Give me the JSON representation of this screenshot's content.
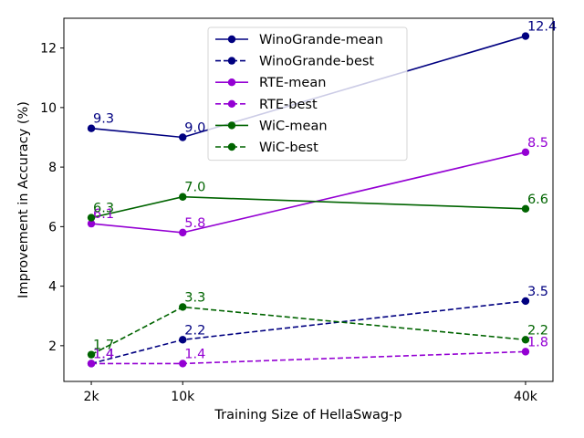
{
  "chart_data": {
    "type": "line",
    "title": "",
    "xlabel": "Training Size of HellaSwag-p",
    "ylabel": "Improvement in Accuracy (%)",
    "categories": [
      "2k",
      "10k",
      "40k"
    ],
    "x": [
      2,
      10,
      40
    ],
    "xlim": [
      -0.4,
      42.4
    ],
    "ylim": [
      0.8,
      13.0
    ],
    "yticks": [
      2,
      4,
      6,
      8,
      10,
      12
    ],
    "legend_position": "upper-center",
    "series": [
      {
        "name": "WinoGrande-mean",
        "color": "#000080",
        "linestyle": "solid",
        "values": [
          9.3,
          9.0,
          12.4
        ],
        "labels": [
          "9.3",
          "9.0",
          "12.4"
        ]
      },
      {
        "name": "WinoGrande-best",
        "color": "#000080",
        "linestyle": "dashed",
        "values": [
          1.4,
          2.2,
          3.5
        ],
        "labels": [
          "1.4",
          "2.2",
          "3.5"
        ]
      },
      {
        "name": "RTE-mean",
        "color": "#9400d3",
        "linestyle": "solid",
        "values": [
          6.1,
          5.8,
          8.5
        ],
        "labels": [
          "6.1",
          "5.8",
          "8.5"
        ]
      },
      {
        "name": "RTE-best",
        "color": "#9400d3",
        "linestyle": "dashed",
        "values": [
          1.4,
          1.4,
          1.8
        ],
        "labels": [
          "1.4",
          "1.4",
          "1.8"
        ]
      },
      {
        "name": "WiC-mean",
        "color": "#006400",
        "linestyle": "solid",
        "values": [
          6.3,
          7.0,
          6.6
        ],
        "labels": [
          "6.3",
          "7.0",
          "6.6"
        ]
      },
      {
        "name": "WiC-best",
        "color": "#006400",
        "linestyle": "dashed",
        "values": [
          1.7,
          3.3,
          2.2
        ],
        "labels": [
          "1.7",
          "3.3",
          "2.2"
        ]
      }
    ]
  }
}
